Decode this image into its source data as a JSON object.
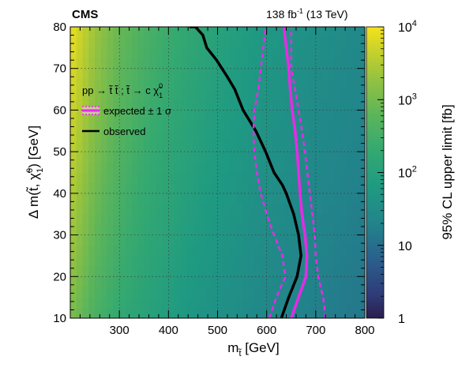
{
  "header": {
    "experiment": "CMS",
    "lumi_value": "138 fb",
    "lumi_exp": "-1",
    "energy": " (13 TeV)"
  },
  "legend": {
    "process_main": "pp → t̃ t̃ ; t̃ → c χ̃",
    "process_sup": "0",
    "process_sub": "1",
    "expected_label": "expected ± 1 σ",
    "observed_label": "observed"
  },
  "colorbar": {
    "label": "95% CL upper limit [fb]",
    "tick_labels": [
      {
        "value": 1,
        "base": "1",
        "exp": ""
      },
      {
        "value": 10,
        "base": "10",
        "exp": ""
      },
      {
        "value": 100,
        "base": "10",
        "exp": "2"
      },
      {
        "value": 1000,
        "base": "10",
        "exp": "3"
      },
      {
        "value": 10000,
        "base": "10",
        "exp": "4"
      }
    ]
  },
  "chart_data": {
    "type": "heatmap",
    "title": "",
    "xlabel_main": "m",
    "xlabel_sub": "t̃",
    "xlabel_unit": " [GeV]",
    "ylabel_main": "Δ m(t̃, χ̃",
    "ylabel_sup": "0",
    "ylabel_sub": "1",
    "ylabel_unit": ") [GeV]",
    "xlim": [
      200,
      800
    ],
    "ylim": [
      10,
      80
    ],
    "xticks": [
      300,
      400,
      500,
      600,
      700,
      800
    ],
    "yticks": [
      10,
      20,
      30,
      40,
      50,
      60,
      70,
      80
    ],
    "zlim": [
      1,
      10000
    ],
    "zscale": "log",
    "grid": true,
    "colors": {
      "high": "#f0e020",
      "mid": "#4aa867",
      "low": "#2a1e4e",
      "expected": "#e62be6",
      "observed": "#000000"
    },
    "heat_grid": {
      "x": [
        200,
        250,
        300,
        350,
        400,
        450,
        500,
        550,
        600,
        650,
        700,
        750,
        800
      ],
      "y": [
        10,
        20,
        30,
        40,
        50,
        60,
        70,
        80
      ],
      "z": [
        [
          1200,
          380,
          180,
          110,
          75,
          50,
          38,
          30,
          24,
          20,
          17,
          15,
          13
        ],
        [
          1800,
          520,
          240,
          140,
          90,
          60,
          44,
          34,
          27,
          22,
          19,
          16,
          14
        ],
        [
          2500,
          700,
          300,
          170,
          110,
          72,
          52,
          40,
          31,
          25,
          21,
          18,
          15
        ],
        [
          3300,
          900,
          370,
          200,
          130,
          85,
          60,
          46,
          35,
          28,
          23,
          20,
          17
        ],
        [
          4300,
          1150,
          450,
          240,
          150,
          100,
          70,
          52,
          40,
          32,
          26,
          22,
          19
        ],
        [
          5500,
          1450,
          550,
          290,
          180,
          115,
          80,
          60,
          45,
          36,
          29,
          25,
          21
        ],
        [
          7000,
          1800,
          660,
          340,
          210,
          135,
          93,
          68,
          51,
          40,
          32,
          27,
          23
        ],
        [
          9000,
          2200,
          800,
          400,
          245,
          155,
          105,
          77,
          57,
          45,
          36,
          30,
          25
        ]
      ]
    },
    "series": [
      {
        "name": "observed",
        "style": "solid",
        "color": "#000000",
        "x": [
          630,
          645,
          662,
          670,
          665,
          655,
          640,
          632,
          615,
          598,
          578,
          552,
          535,
          520,
          498,
          478,
          470,
          455,
          443
        ],
        "y": [
          10,
          15,
          20,
          25,
          30,
          35,
          40,
          42,
          45,
          50,
          55,
          60,
          65,
          68,
          72,
          75,
          78,
          80,
          80
        ]
      },
      {
        "name": "expected",
        "style": "solid",
        "color": "#e62be6",
        "x": [
          650,
          665,
          680,
          682,
          678,
          672,
          668,
          665,
          662,
          658,
          652,
          648,
          645,
          640,
          635
        ],
        "y": [
          10,
          15,
          20,
          25,
          30,
          35,
          40,
          45,
          50,
          55,
          60,
          65,
          70,
          75,
          80
        ]
      },
      {
        "name": "expected -1σ",
        "style": "dashed",
        "color": "#e62be6",
        "x": [
          605,
          620,
          638,
          632,
          615,
          600,
          588,
          580,
          575,
          573,
          575,
          583,
          590,
          598
        ],
        "y": [
          10,
          15,
          20,
          25,
          30,
          35,
          40,
          45,
          50,
          55,
          60,
          65,
          72,
          80
        ]
      },
      {
        "name": "expected +1σ",
        "style": "dashed",
        "color": "#e62be6",
        "x": [
          720,
          715,
          705,
          700,
          698,
          693,
          688,
          683,
          678,
          672,
          665,
          658,
          650,
          650
        ],
        "y": [
          10,
          15,
          20,
          25,
          30,
          35,
          40,
          45,
          50,
          55,
          60,
          65,
          70,
          80
        ]
      }
    ]
  }
}
